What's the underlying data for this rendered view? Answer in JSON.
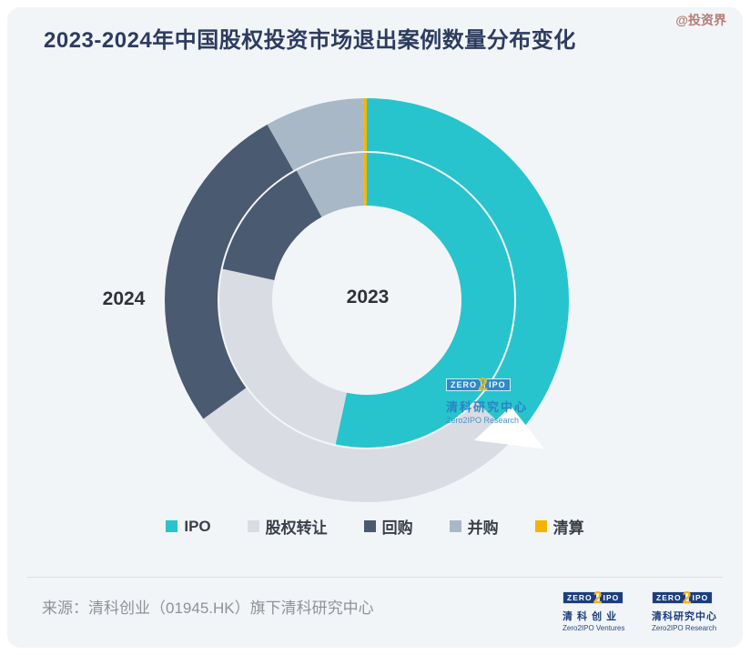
{
  "watermark": "@投资界",
  "title": "2023-2024年中国股权投资市场退出案例数量分布变化",
  "chart_data": {
    "type": "pie",
    "subtype": "double-ring-donut",
    "title": "2023-2024年中国股权投资市场退出案例数量分布变化",
    "unit": "share of exit cases (%, estimated from arc angles)",
    "categories": [
      "IPO",
      "股权转让",
      "回购",
      "并购",
      "清算"
    ],
    "colors": [
      "#27c4cd",
      "#d9dde3",
      "#4a5a70",
      "#a9b8c7",
      "#f3b600"
    ],
    "rings": [
      {
        "label": "2023",
        "position": "inner",
        "values": [
          53.4,
          25.0,
          13.7,
          7.5,
          0.4
        ]
      },
      {
        "label": "2024",
        "position": "outer",
        "values": [
          36.9,
          28.1,
          26.8,
          7.9,
          0.3
        ]
      }
    ],
    "legend_position": "bottom",
    "grid": false
  },
  "legend": {
    "items": [
      {
        "label": "IPO",
        "color": "#27c4cd"
      },
      {
        "label": "股权转让",
        "color": "#d9dde3"
      },
      {
        "label": "回购",
        "color": "#4a5a70"
      },
      {
        "label": "并购",
        "color": "#a9b8c7"
      },
      {
        "label": "清算",
        "color": "#f3b600"
      }
    ]
  },
  "brand": {
    "zero": "ZERO",
    "two": "2",
    "ipo": "IPO"
  },
  "center_logo": {
    "cn": "清科研究中心",
    "en": "Zero2IPO Research"
  },
  "footer": {
    "source": "来源：清科创业（01945.HK）旗下清科研究中心",
    "logos": [
      {
        "cn": "清 科 创 业",
        "en": "Zero2IPO Ventures"
      },
      {
        "cn": "清科研究中心",
        "en": "Zero2IPO Research"
      }
    ]
  }
}
